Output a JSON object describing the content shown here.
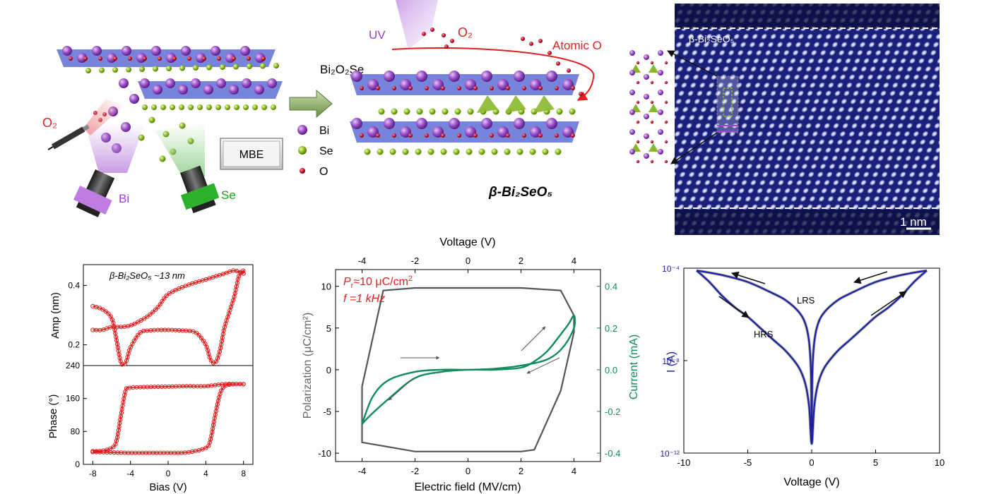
{
  "schematic": {
    "o2_left": "O₂",
    "bi_source": "Bi",
    "se_source": "Se",
    "mbe": "MBE",
    "uv": "UV",
    "o2_top": "O₂",
    "atomic_o": "Atomic O",
    "precursor": "Bi₂O₂Se",
    "legend": [
      "Bi",
      "Se",
      "O"
    ],
    "product": "β-Bi₂SeO₅",
    "colors": {
      "bi": "#9b4fc7",
      "se": "#8fbf1f",
      "o": "#c8102e",
      "layer": "#5e6fd6",
      "arrow": "#7a9a52",
      "uv": "#b57cd9",
      "tetra": "#8ab82c"
    }
  },
  "stem": {
    "phase_label": "β-Bi₂SeO₅",
    "scale_bar": "1 nm",
    "background": "#1a1f7a"
  },
  "chart_data": [
    {
      "type": "line",
      "panel": "PFM",
      "annotation": "β-Bi₂SeO₅ ~13 nm",
      "xlabel": "Bias (V)",
      "x_ticks": [
        "-8",
        "-4",
        "0",
        "4",
        "8"
      ],
      "xlim": [
        -9,
        9
      ],
      "amp": {
        "ylabel": "Amp (nm)",
        "y_ticks": [
          "0.2",
          "0.4"
        ],
        "ylim": [
          0.13,
          0.47
        ],
        "series": [
          {
            "x": [
              -8,
              -7,
              -6,
              -5.5,
              -5,
              -4.5,
              -4,
              -3,
              -2,
              -1,
              0,
              1,
              2,
              3,
              4,
              4.5,
              5,
              5.5,
              6,
              7,
              7.5,
              8,
              8
            ],
            "y": [
              0.33,
              0.32,
              0.29,
              0.22,
              0.14,
              0.14,
              0.19,
              0.24,
              0.248,
              0.25,
              0.25,
              0.249,
              0.247,
              0.24,
              0.2,
              0.15,
              0.14,
              0.18,
              0.26,
              0.36,
              0.43,
              0.45,
              0.44
            ]
          },
          {
            "x": [
              8,
              7,
              6,
              4,
              2,
              0,
              -1,
              -2,
              -3,
              -4,
              -5,
              -6,
              -7,
              -8
            ],
            "y": [
              0.44,
              0.45,
              0.44,
              0.42,
              0.4,
              0.37,
              0.33,
              0.3,
              0.28,
              0.265,
              0.26,
              0.26,
              0.25,
              0.25
            ]
          }
        ]
      },
      "phase": {
        "ylabel": "Phase (°)",
        "y_ticks": [
          "0",
          "80",
          "160",
          "240"
        ],
        "ylim": [
          0,
          240
        ],
        "series": [
          {
            "x": [
              -8,
              -6,
              -4,
              -2,
              0,
              2,
              4,
              4.5,
              5,
              5.5,
              6,
              7,
              8
            ],
            "y": [
              30,
              29,
              28,
              28,
              28,
              29,
              40,
              60,
              120,
              170,
              190,
              195,
              195
            ]
          },
          {
            "x": [
              8,
              6,
              4,
              2,
              0,
              -2,
              -4,
              -4.5,
              -5,
              -5.5,
              -6,
              -7,
              -8
            ],
            "y": [
              195,
              195,
              190,
              190,
              189,
              188,
              186,
              180,
              120,
              55,
              40,
              33,
              32
            ]
          }
        ]
      }
    },
    {
      "type": "line",
      "panel": "P-E",
      "annotation_pr": "Pᵣ≈10 μC/cm²",
      "annotation_f": "f =1 kHz",
      "xlabel": "Electric field (MV/cm)",
      "x_top_label": "Voltage (V)",
      "ylabel_left": "Polarization (μC/cm²)",
      "ylabel_right": "Current (mA)",
      "x_ticks": [
        "-4",
        "-2",
        "0",
        "2",
        "4"
      ],
      "x_top_ticks": [
        "-4",
        "-2",
        "0",
        "2",
        "4"
      ],
      "y_ticks": [
        "-10",
        "-5",
        "0",
        "5",
        "10"
      ],
      "y_right_ticks": [
        "-0.4",
        "-0.2",
        "0.0",
        "0.2",
        "0.4"
      ],
      "xlim": [
        -5,
        5
      ],
      "ylim": [
        -11,
        12
      ],
      "polarization": {
        "x": [
          0,
          -2,
          -4,
          -4,
          -3.2,
          -2,
          0,
          2,
          3.5,
          4.0,
          4.0,
          3.5,
          2.5,
          2,
          0
        ],
        "y": [
          -9.8,
          -9.8,
          -8.7,
          -2,
          9.5,
          9.8,
          9.8,
          9.8,
          9.5,
          6.5,
          4.5,
          -2.5,
          -9.6,
          -9.8,
          -9.8
        ]
      },
      "current": {
        "x": [
          -4,
          -3.7,
          -3,
          -2,
          -1,
          0,
          1,
          2,
          2.5,
          3,
          3.5,
          3.8,
          4,
          4,
          3.6,
          3,
          2,
          1,
          0,
          -1,
          -2,
          -3,
          -3.6,
          -4
        ],
        "y": [
          -0.26,
          -0.22,
          -0.14,
          -0.04,
          -0.01,
          0,
          0,
          0.01,
          0.04,
          0.09,
          0.17,
          0.22,
          0.26,
          0.2,
          0.11,
          0.05,
          0.02,
          0.005,
          0,
          0,
          -0.01,
          -0.05,
          -0.13,
          -0.26
        ]
      }
    },
    {
      "type": "line",
      "panel": "I-V",
      "xlabel": "Voltage (V)",
      "ylabel": "I (A)",
      "x_ticks": [
        "-10",
        "-5",
        "0",
        "5",
        "10"
      ],
      "y_ticks": [
        "10⁻¹²",
        "10⁻⁸",
        "10⁻⁴"
      ],
      "xlim": [
        -10,
        10
      ],
      "ylim_log10": [
        -12,
        -4
      ],
      "labels": [
        "LRS",
        "HRS"
      ],
      "colors": {
        "curve": "#1f1fa0",
        "gray": "#8c9a90"
      },
      "lrs": {
        "x": [
          -9,
          -7,
          -5,
          -3,
          -2,
          -1,
          -0.5,
          -0.2,
          -0.05,
          0,
          0.05,
          0.2,
          0.5,
          1,
          2,
          3,
          5,
          7,
          9
        ],
        "y_log10": [
          -4.1,
          -4.3,
          -4.6,
          -5.1,
          -5.4,
          -5.9,
          -6.4,
          -7.2,
          -8.6,
          -11.4,
          -8.6,
          -7.2,
          -6.4,
          -5.9,
          -5.4,
          -5.1,
          -4.6,
          -4.3,
          -4.1
        ]
      },
      "hrs": {
        "x": [
          -9,
          -8,
          -7,
          -6,
          -5,
          -4,
          -3,
          -2,
          -1,
          -0.5,
          -0.2,
          0,
          0.2,
          0.5,
          1,
          2,
          3,
          4,
          5,
          6,
          7,
          8,
          9
        ],
        "y_log10": [
          -4.1,
          -4.6,
          -5.2,
          -5.7,
          -6.1,
          -6.6,
          -7.1,
          -7.6,
          -8.3,
          -9,
          -10,
          -11.6,
          -10,
          -9,
          -8.3,
          -7.6,
          -7.1,
          -6.6,
          -6.1,
          -5.7,
          -5.2,
          -4.6,
          -4.1
        ]
      }
    }
  ]
}
